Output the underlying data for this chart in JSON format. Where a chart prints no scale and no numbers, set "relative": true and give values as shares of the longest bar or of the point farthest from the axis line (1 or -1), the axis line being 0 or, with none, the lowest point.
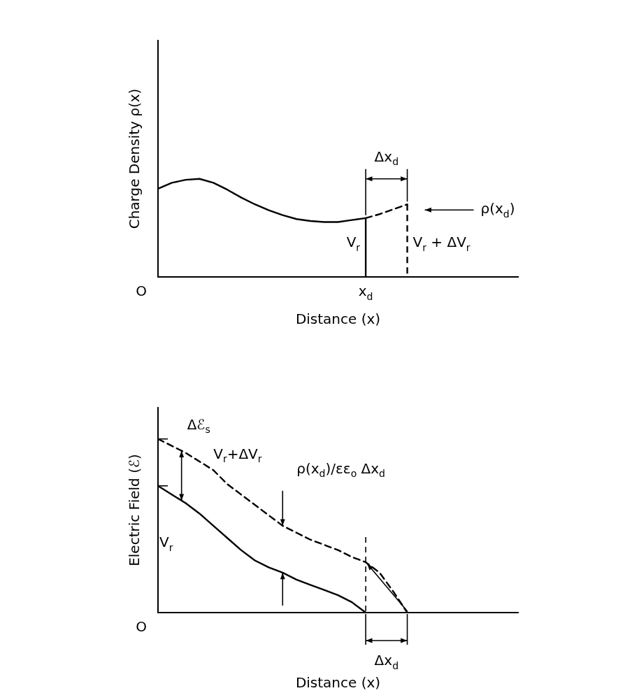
{
  "chart_data": [
    {
      "type": "line",
      "relative": true,
      "xlabel": "Distance (x)",
      "ylabel": "Charge Density ρ(x)",
      "marker": "none",
      "categories": [
        null,
        null,
        null,
        null,
        null,
        null,
        null,
        null,
        null,
        null,
        null,
        null,
        null,
        null,
        null,
        null,
        null,
        null,
        null,
        null,
        null,
        null,
        null,
        null,
        null,
        null,
        null
      ],
      "series": [
        {
          "name": "V$_{r}$",
          "color": "#000000",
          "line_style": "solid",
          "values": [
            0.9,
            0.96,
            0.99,
            1.0,
            0.96,
            0.89,
            0.81,
            0.74,
            0.68,
            0.63,
            0.59,
            0.57,
            0.56,
            0.56,
            0.58,
            0.6,
            null,
            null,
            null,
            null,
            null,
            null,
            null,
            null,
            null,
            null,
            null
          ]
        },
        {
          "name": "V$_{r}$ + ΔV$_{r}$",
          "color": "#000000",
          "line_style": "dashed",
          "values": [
            null,
            null,
            null,
            null,
            null,
            null,
            null,
            null,
            null,
            null,
            null,
            null,
            null,
            null,
            null,
            0.6,
            0.64,
            0.69,
            0.74,
            null,
            null,
            null,
            null,
            null,
            null,
            null,
            null
          ]
        }
      ],
      "annotations": [
        "Δx$_{d}$",
        "ρ(x$_{d}$)",
        "O",
        "x$_{d}$"
      ]
    },
    {
      "type": "line",
      "relative": true,
      "xlabel": "Distance (x)",
      "ylabel": "Electric Field (ℰ)",
      "marker": "none",
      "categories": [
        null,
        null,
        null,
        null,
        null,
        null,
        null,
        null,
        null,
        null,
        null,
        null,
        null,
        null,
        null,
        null,
        null,
        null,
        null,
        null,
        null,
        null,
        null,
        null,
        null,
        null,
        null
      ],
      "series": [
        {
          "name": "V$_{r}$+ΔV$_{r}$",
          "color": "#000000",
          "line_style": "dashed",
          "values": [
            1.0,
            0.96,
            0.92,
            0.87,
            0.82,
            0.74,
            0.68,
            0.62,
            0.56,
            0.5,
            0.46,
            0.42,
            0.39,
            0.36,
            0.32,
            0.29,
            0.23,
            0.12,
            0,
            null,
            null,
            null,
            null,
            null,
            null,
            null,
            null
          ]
        },
        {
          "name": "V$_{r}$",
          "color": "#000000",
          "line_style": "solid",
          "values": [
            0.73,
            0.68,
            0.63,
            0.57,
            0.5,
            0.43,
            0.36,
            0.3,
            0.26,
            0.23,
            0.19,
            0.16,
            0.13,
            0.1,
            0.06,
            0,
            null,
            null,
            null,
            null,
            null,
            null,
            null,
            null,
            null,
            null,
            null
          ]
        }
      ],
      "annotations": [
        "Δℰ$_{s}$",
        "ρ(x$_{d}$)/εε$_{o}$ Δx$_{d}$",
        "Δx$_{d}$",
        "O"
      ]
    }
  ]
}
